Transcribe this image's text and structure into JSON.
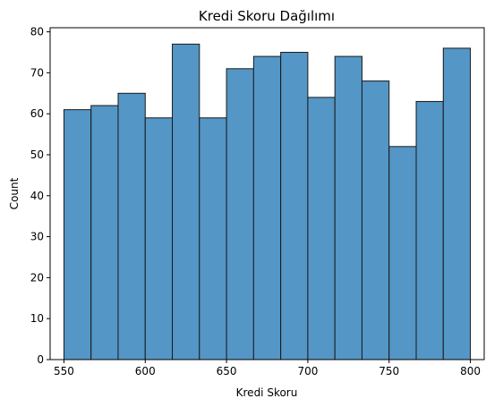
{
  "chart_data": {
    "type": "bar",
    "title": "Kredi Skoru Dağılımı",
    "xlabel": "Kredi Skoru",
    "ylabel": "Count",
    "bin_edges": [
      550,
      566.67,
      583.33,
      600,
      616.67,
      633.33,
      650,
      666.67,
      683.33,
      700,
      716.67,
      733.33,
      750,
      766.67,
      783.33,
      800
    ],
    "values": [
      61,
      62,
      65,
      59,
      77,
      59,
      71,
      74,
      75,
      64,
      74,
      68,
      52,
      63,
      76
    ],
    "xlim": [
      541.5,
      808.5
    ],
    "ylim": [
      0,
      81
    ],
    "xticks": [
      550,
      600,
      650,
      700,
      750,
      800
    ],
    "yticks": [
      0,
      10,
      20,
      30,
      40,
      50,
      60,
      70,
      80
    ],
    "grid": false,
    "bar_color": "#5496c6",
    "edge_color": "#1a1a1a"
  }
}
